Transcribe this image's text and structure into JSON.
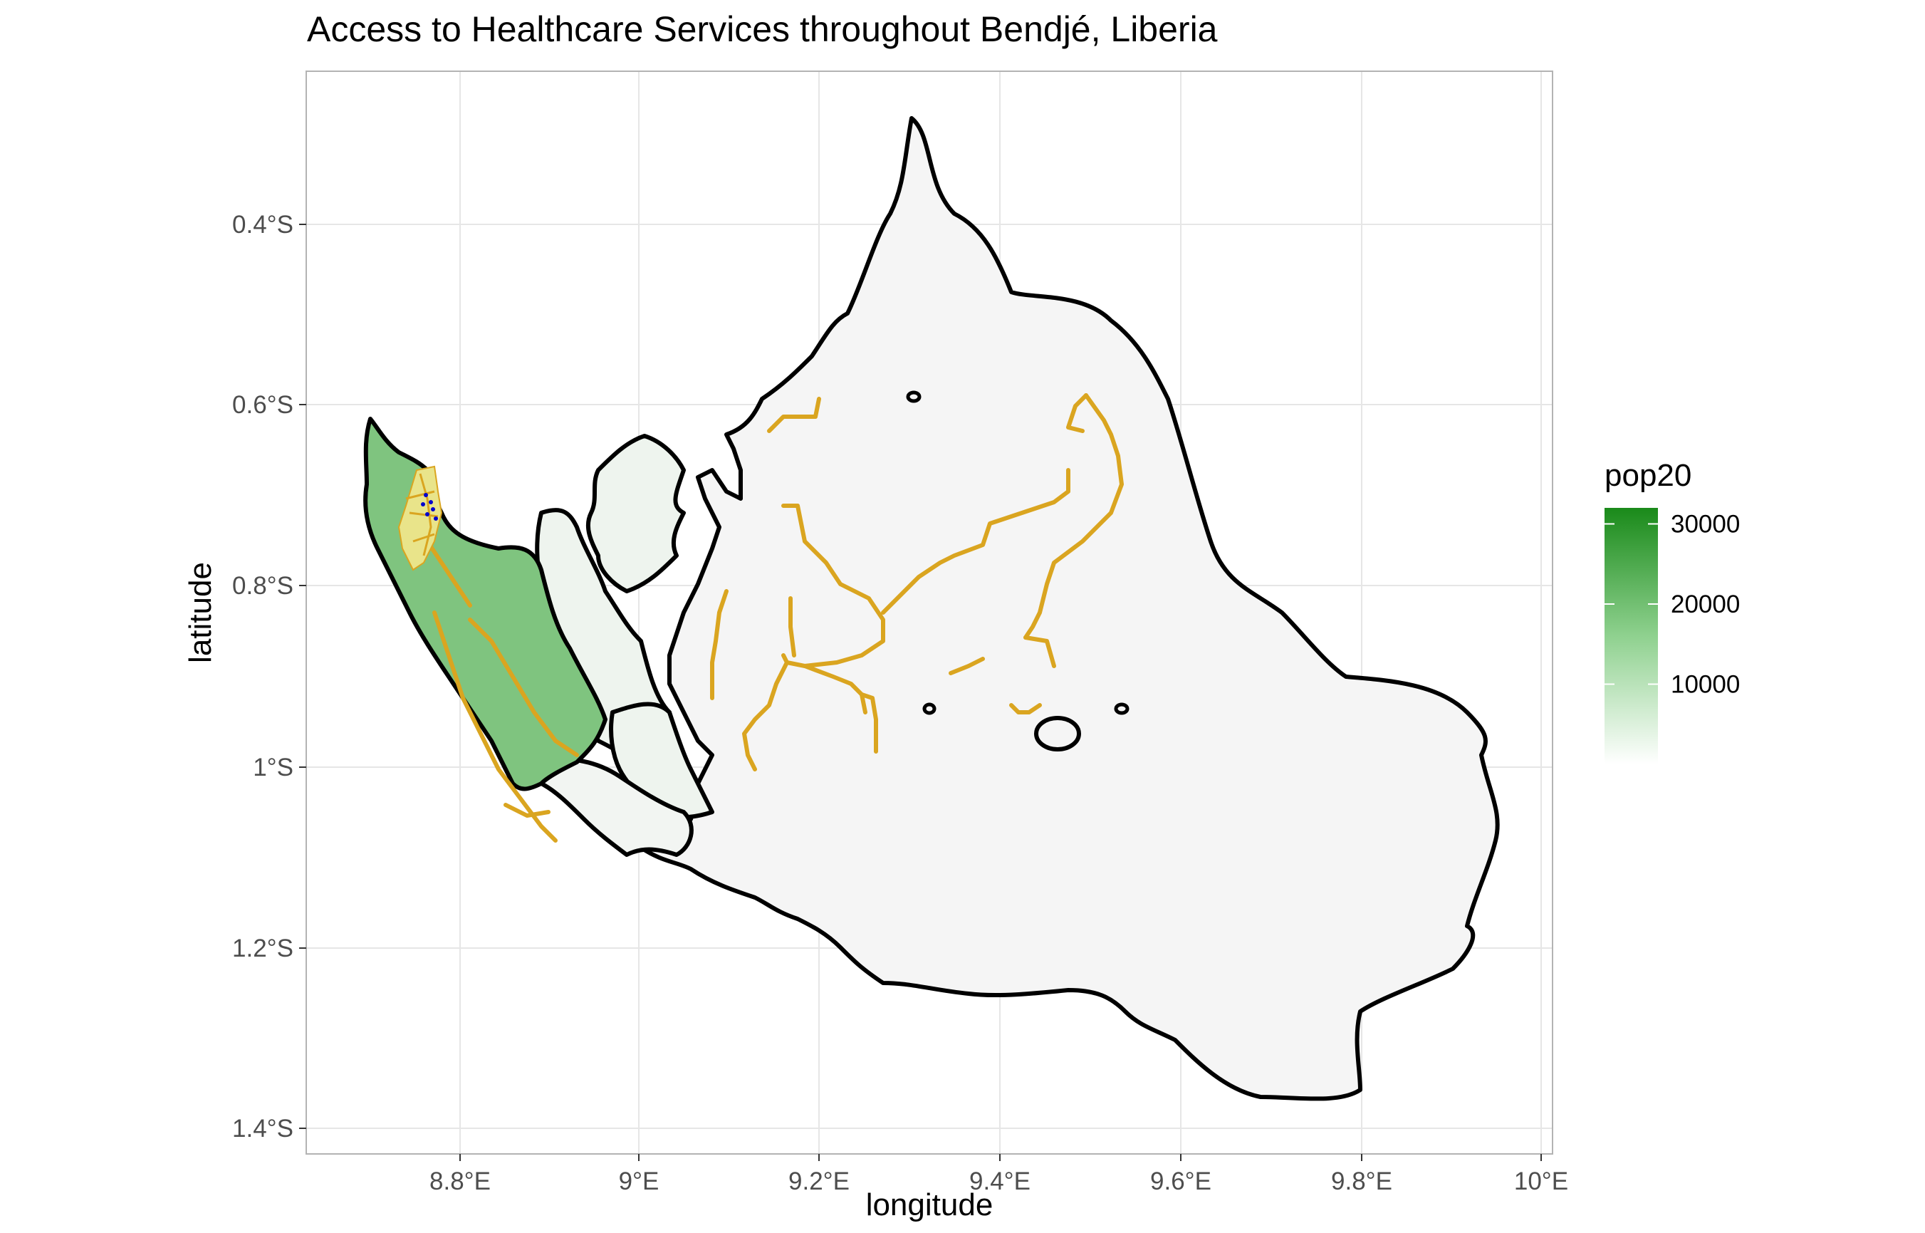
{
  "title": "Access to Healthcare Services throughout Bendjé, Liberia",
  "axes": {
    "xlabel": "longitude",
    "ylabel": "latitude",
    "x_ticks": [
      "8.8°E",
      "9°E",
      "9.2°E",
      "9.4°E",
      "9.6°E",
      "9.8°E",
      "10°E"
    ],
    "y_ticks": [
      "0.4°S",
      "0.6°S",
      "0.8°S",
      "1°S",
      "1.2°S",
      "1.4°S"
    ],
    "x_range": [
      8.64,
      10.01
    ],
    "y_range": [
      -1.42,
      -0.23
    ],
    "grid": true
  },
  "legend": {
    "title": "pop20",
    "breaks": [
      "30000",
      "20000",
      "10000"
    ],
    "placement": "right",
    "range": [
      0,
      32000
    ],
    "low_color": "#ffffff",
    "high_color": "#1a8a1a"
  },
  "colors": {
    "road": "#DAA520",
    "boundary": "#000000",
    "facility": "#0000CD",
    "panel_border": "#b3b3b3",
    "grid": "#e6e6e6"
  },
  "chart_data": {
    "type": "choropleth",
    "fill_variable": "pop20",
    "regions": [
      {
        "pop20": 13000
      },
      {
        "pop20": 1500
      },
      {
        "pop20": 900
      },
      {
        "pop20": 500
      },
      {
        "pop20": 300
      },
      {
        "pop20": 100
      }
    ],
    "layers": [
      "administrative boundaries",
      "roads",
      "health facilities"
    ]
  }
}
